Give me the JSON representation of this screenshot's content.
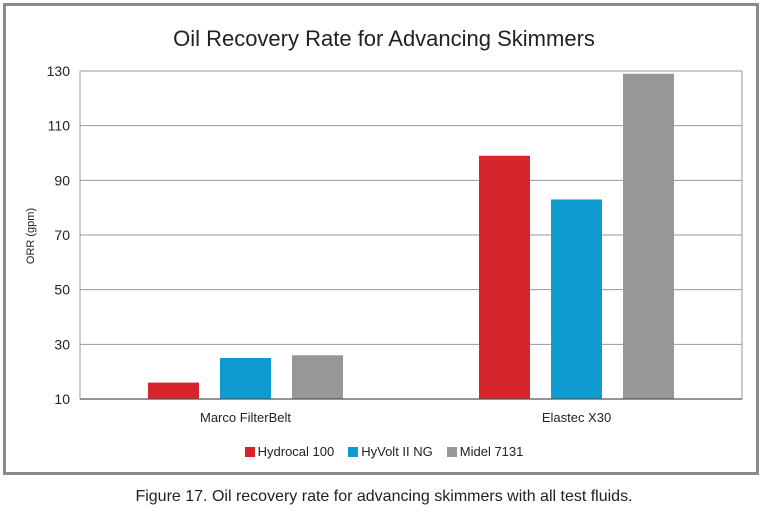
{
  "chart_data": {
    "type": "bar",
    "title": "Oil Recovery Rate for Advancing Skimmers",
    "xlabel": "",
    "ylabel": "ORR (gpm)",
    "ylim": [
      10,
      130
    ],
    "yticks": [
      10,
      30,
      50,
      70,
      90,
      110,
      130
    ],
    "grid": true,
    "categories": [
      "Marco FilterBelt",
      "Elastec X30"
    ],
    "series": [
      {
        "name": "Hydrocal 100",
        "color": "#d7262b",
        "values": [
          16,
          99
        ]
      },
      {
        "name": "HyVolt II NG",
        "color": "#0f9bcf",
        "values": [
          25,
          83
        ]
      },
      {
        "name": "Midel 7131",
        "color": "#97979a",
        "values": [
          26,
          129
        ]
      }
    ],
    "legend_position": "bottom"
  },
  "caption": "Figure 17. Oil recovery rate for advancing skimmers with all test fluids."
}
